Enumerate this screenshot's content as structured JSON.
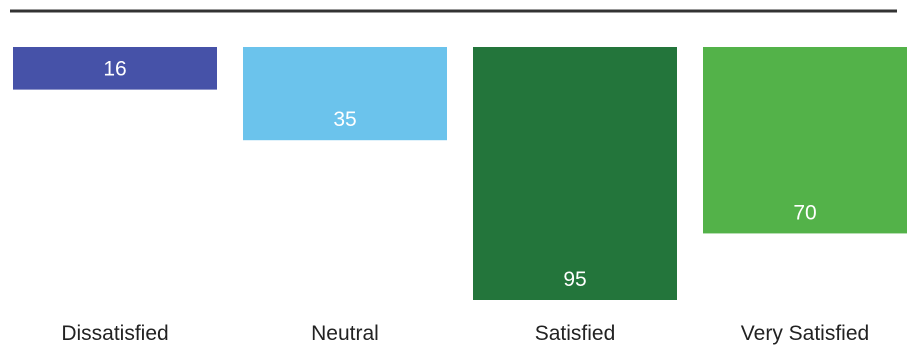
{
  "chart_data": {
    "type": "bar",
    "orientation": "vertical-hanging",
    "categories": [
      "Dissatisfied",
      "Neutral",
      "Satisfied",
      "Very Satisfied"
    ],
    "values": [
      16,
      35,
      95,
      70
    ],
    "colors": [
      "#4652a8",
      "#6bc3ec",
      "#23753b",
      "#53b249"
    ],
    "value_label_color": "#ffffff",
    "axis_line_color": "#333333",
    "ylim": [
      0,
      95
    ],
    "grid": false,
    "legend": "none",
    "title": "",
    "xlabel": "",
    "ylabel": ""
  }
}
